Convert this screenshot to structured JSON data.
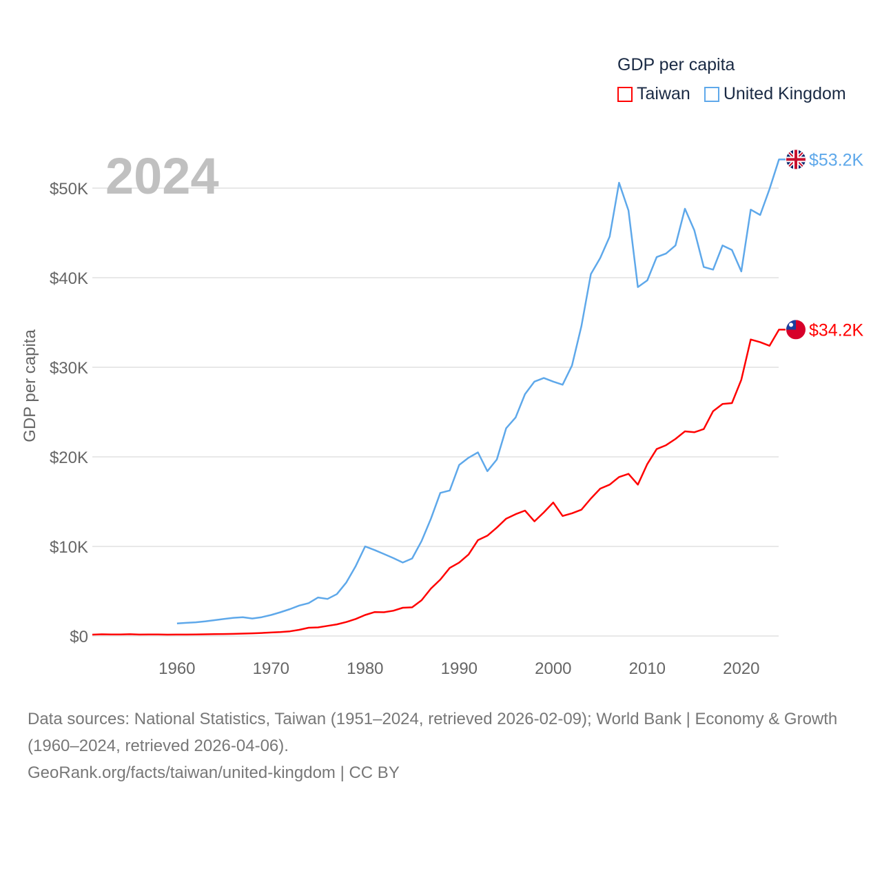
{
  "chart_data": {
    "type": "line",
    "title": "GDP per capita",
    "ylabel": "GDP per capita",
    "xlabel": "",
    "year_label": "2024",
    "ylim": [
      0,
      55000
    ],
    "xlim": [
      1951,
      2024
    ],
    "grid": true,
    "legend_position": "top-right",
    "x_ticks": [
      1960,
      1970,
      1980,
      1990,
      2000,
      2010,
      2020
    ],
    "y_ticks": [
      0,
      10000,
      20000,
      30000,
      40000,
      50000
    ],
    "y_tick_labels": [
      "$0",
      "$10K",
      "$20K",
      "$30K",
      "$40K",
      "$50K"
    ],
    "series": [
      {
        "name": "Taiwan",
        "color": "#ff0000",
        "start_year": 1951,
        "end_label": "$34.2K",
        "flag": "taiwan-flag",
        "values": [
          150,
          190,
          170,
          180,
          200,
          160,
          170,
          180,
          150,
          160,
          160,
          170,
          190,
          210,
          220,
          240,
          270,
          300,
          340,
          390,
          440,
          520,
          690,
          920,
          960,
          1130,
          1300,
          1560,
          1900,
          2350,
          2670,
          2650,
          2820,
          3150,
          3200,
          3990,
          5300,
          6300,
          7600,
          8200,
          9100,
          10700,
          11200,
          12100,
          13100,
          13600,
          14000,
          12800,
          13800,
          14900,
          13400,
          13700,
          14100,
          15350,
          16450,
          16900,
          17750,
          18100,
          16900,
          19200,
          20870,
          21300,
          22000,
          22850,
          22750,
          23100,
          25100,
          25900,
          26000,
          28600,
          33100,
          32800,
          32400,
          34200
        ]
      },
      {
        "name": "United Kingdom",
        "color": "#5ea8ea",
        "start_year": 1960,
        "end_label": "$53.2K",
        "flag": "uk-flag",
        "values": [
          1400,
          1470,
          1530,
          1630,
          1770,
          1900,
          2030,
          2100,
          1950,
          2100,
          2350,
          2650,
          3000,
          3400,
          3670,
          4300,
          4140,
          4680,
          5980,
          7800,
          10000,
          9600,
          9150,
          8700,
          8200,
          8650,
          10600,
          13100,
          15980,
          16250,
          19100,
          19900,
          20500,
          18400,
          19700,
          23200,
          24400,
          27000,
          28400,
          28800,
          28400,
          28050,
          30200,
          34600,
          40400,
          42200,
          44600,
          50600,
          47500,
          38950,
          39700,
          42300,
          42700,
          43600,
          47700,
          45300,
          41200,
          40900,
          43600,
          43100,
          40700,
          47600,
          47000,
          49900,
          53200
        ]
      }
    ]
  },
  "source": {
    "line1": "Data sources: National Statistics, Taiwan (1951–2024, retrieved 2026-02-09); World Bank | Economy & Growth (1960–2024, retrieved 2026-04-06).",
    "line2": "GeoRank.org/facts/taiwan/united-kingdom | CC BY"
  }
}
